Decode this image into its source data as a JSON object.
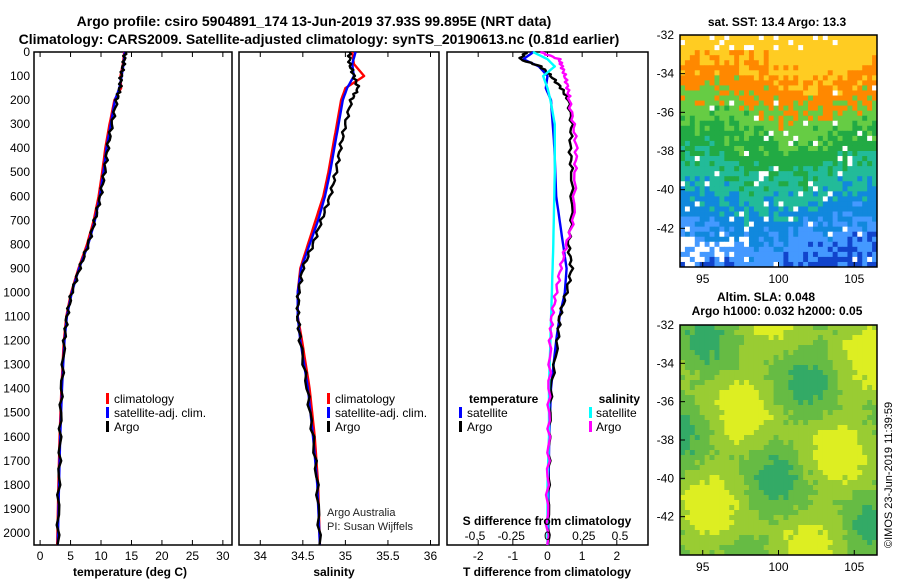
{
  "title": {
    "line1": "Argo profile: csiro 5904891_174 13-Jun-2019 37.93S 99.895E (NRT data)",
    "line2": "Climatology: CARS2009. Satellite-adjusted climatology: synTS_20190613.nc (0.81d earlier)"
  },
  "colors": {
    "climatology": "#ff0000",
    "satellite": "#0000ff",
    "argo": "#000000",
    "salinity_satellite": "#00ffff",
    "salinity_argo": "#ff00ff"
  },
  "depth_ticks": [
    "0",
    "100",
    "200",
    "300",
    "400",
    "500",
    "600",
    "700",
    "800",
    "900",
    "1000",
    "1100",
    "1200",
    "1300",
    "1400",
    "1500",
    "1600",
    "1700",
    "1800",
    "1900",
    "2000"
  ],
  "legend_labels": {
    "climatology": "climatology",
    "satellite": "satellite-adj. clim.",
    "argo": "Argo"
  },
  "credits": {
    "org": "Argo Australia",
    "pi": "PI: Susan Wijffels"
  },
  "chart_data": [
    {
      "type": "line",
      "name": "temperature",
      "xlabel": "temperature (deg C)",
      "ylabel": "depth",
      "xlim": [
        -1,
        31.5
      ],
      "ylim": [
        2050,
        0
      ],
      "xticks": [
        "0",
        "5",
        "10",
        "15",
        "20",
        "25",
        "30"
      ],
      "xtick_values": [
        0,
        5,
        10,
        15,
        20,
        25,
        30
      ],
      "series": [
        {
          "name": "climatology",
          "depth": [
            0,
            50,
            100,
            150,
            200,
            300,
            400,
            500,
            600,
            700,
            800,
            900,
            1000,
            1100,
            1200,
            1400,
            1600,
            1800,
            2050
          ],
          "values": [
            13.8,
            13.6,
            13.2,
            13.3,
            12.2,
            11.4,
            10.7,
            10.2,
            9.6,
            8.8,
            7.7,
            6.3,
            5.1,
            4.3,
            3.9,
            3.5,
            3.2,
            3.0,
            2.8
          ]
        },
        {
          "name": "satellite-adj. clim.",
          "depth": [
            0,
            50,
            100,
            150,
            200,
            300,
            400,
            500,
            600,
            700,
            800,
            900,
            1000,
            1100,
            1200,
            1400,
            1600,
            1800,
            2050
          ],
          "values": [
            13.9,
            13.7,
            13.4,
            13.0,
            12.3,
            11.6,
            10.9,
            10.4,
            9.8,
            9.0,
            7.9,
            6.4,
            5.2,
            4.4,
            4.0,
            3.6,
            3.3,
            3.1,
            2.9
          ]
        },
        {
          "name": "Argo",
          "depth": [
            0,
            50,
            100,
            150,
            200,
            300,
            400,
            500,
            600,
            700,
            800,
            900,
            1000,
            1100,
            1200,
            1400,
            1600,
            1800,
            2050
          ],
          "values": [
            14.0,
            13.7,
            13.3,
            13.1,
            12.6,
            11.8,
            11.1,
            10.6,
            9.9,
            9.0,
            7.9,
            6.5,
            5.2,
            4.4,
            4.0,
            3.5,
            3.3,
            3.1,
            2.9
          ]
        }
      ]
    },
    {
      "type": "line",
      "name": "salinity",
      "xlabel": "salinity",
      "ylabel": "depth",
      "xlim": [
        33.75,
        36.1
      ],
      "ylim": [
        2050,
        0
      ],
      "xticks": [
        "34",
        "34.5",
        "35",
        "35.5",
        "36"
      ],
      "xtick_values": [
        34,
        34.5,
        35,
        35.5,
        36
      ],
      "series": [
        {
          "name": "climatology",
          "depth": [
            0,
            50,
            100,
            150,
            200,
            300,
            400,
            500,
            600,
            700,
            800,
            900,
            1000,
            1100,
            1200,
            1400,
            1600,
            1800,
            2050
          ],
          "values": [
            35.08,
            35.1,
            35.22,
            35.0,
            34.95,
            34.9,
            34.85,
            34.8,
            34.74,
            34.65,
            34.56,
            34.47,
            34.44,
            34.44,
            34.49,
            34.58,
            34.64,
            34.68,
            34.7
          ]
        },
        {
          "name": "satellite-adj. clim.",
          "depth": [
            0,
            50,
            100,
            150,
            200,
            300,
            400,
            500,
            600,
            700,
            800,
            900,
            1000,
            1100,
            1200,
            1400,
            1600,
            1800,
            2050
          ],
          "values": [
            35.12,
            35.08,
            35.1,
            35.02,
            34.97,
            34.92,
            34.87,
            34.82,
            34.76,
            34.68,
            34.58,
            34.48,
            34.44,
            34.44,
            34.47,
            34.56,
            34.62,
            34.67,
            34.7
          ]
        },
        {
          "name": "Argo",
          "depth": [
            0,
            50,
            100,
            150,
            200,
            300,
            400,
            500,
            600,
            700,
            800,
            900,
            1000,
            1100,
            1200,
            1400,
            1600,
            1800,
            2050
          ],
          "values": [
            35.05,
            35.05,
            35.1,
            35.15,
            35.07,
            35.0,
            34.94,
            34.89,
            34.82,
            34.72,
            34.62,
            34.5,
            34.45,
            34.44,
            34.47,
            34.55,
            34.62,
            34.67,
            34.7
          ]
        }
      ]
    },
    {
      "type": "line",
      "name": "difference",
      "xlabel": "T difference from climatology",
      "ylabel": "depth",
      "xlim": [
        -2.9,
        2.9
      ],
      "ylim": [
        2050,
        0
      ],
      "xticks": [
        "-2",
        "-1",
        "0",
        "1",
        "2"
      ],
      "xtick_values": [
        -2,
        -1,
        0,
        1,
        2
      ],
      "sxlabel": "S difference from climatology",
      "sxticks": [
        "-0.5",
        "-0.25",
        "0",
        "0.25",
        "0.5"
      ],
      "sxtick_values": [
        -0.5,
        -0.25,
        0,
        0.25,
        0.5
      ],
      "series": [
        {
          "name": "temperature satellite",
          "depth": [
            0,
            30,
            60,
            100,
            150,
            200,
            300,
            400,
            600,
            800,
            900,
            1000,
            1100,
            1200,
            1400,
            1600,
            1800,
            2050
          ],
          "values": [
            -0.4,
            -0.7,
            -0.25,
            0.0,
            -0.05,
            0.1,
            0.15,
            0.2,
            0.25,
            0.45,
            0.55,
            0.5,
            0.35,
            0.25,
            0.1,
            0.05,
            0.03,
            0.02
          ]
        },
        {
          "name": "temperature Argo",
          "depth": [
            0,
            30,
            60,
            100,
            150,
            200,
            300,
            400,
            500,
            700,
            800,
            900,
            1000,
            1100,
            1200,
            1400,
            1600,
            1800,
            2050
          ],
          "values": [
            -0.6,
            -0.8,
            -0.2,
            0.1,
            0.4,
            0.6,
            0.7,
            0.65,
            0.7,
            0.7,
            0.6,
            0.7,
            0.55,
            0.35,
            0.3,
            0.1,
            0.05,
            0.03,
            0.02
          ]
        },
        {
          "name": "salinity satellite",
          "depth": [
            0,
            30,
            60,
            100,
            150,
            200,
            300,
            500,
            800,
            1000,
            1200,
            1400,
            1600,
            1800,
            2050
          ],
          "values": [
            -0.1,
            0.0,
            0.05,
            -0.03,
            0.0,
            0.02,
            0.05,
            0.05,
            0.04,
            0.03,
            0.02,
            0.01,
            0.01,
            0.0,
            0.0
          ]
        },
        {
          "name": "salinity Argo",
          "depth": [
            0,
            30,
            60,
            100,
            150,
            200,
            300,
            400,
            500,
            700,
            800,
            900,
            1000,
            1100,
            1200,
            1400,
            1600,
            1800,
            2050
          ],
          "values": [
            -0.05,
            0.08,
            0.1,
            0.12,
            0.14,
            0.15,
            0.18,
            0.2,
            0.19,
            0.18,
            0.13,
            0.09,
            0.06,
            0.03,
            0.02,
            0.01,
            0.01,
            0.0,
            0.0
          ]
        }
      ],
      "legend": {
        "temperature_title": "temperature",
        "salinity_title": "salinity",
        "satellite": "satellite",
        "argo": "Argo"
      }
    },
    {
      "type": "heatmap",
      "name": "sst_map",
      "title": "sat. SST: 13.4 Argo: 13.3",
      "xlim": [
        93.5,
        106.5
      ],
      "ylim": [
        -44,
        -32
      ],
      "xticks": [
        "95",
        "100",
        "105"
      ],
      "xtick_values": [
        95,
        100,
        105
      ],
      "yticks": [
        "-32",
        "-34",
        "-36",
        "-38",
        "-40",
        "-42"
      ],
      "ytick_values": [
        -32,
        -34,
        -36,
        -38,
        -40,
        -42
      ],
      "colormap": [
        "#ffcc22",
        "#ff8800",
        "#66cc44",
        "#22aa44",
        "#22bb99",
        "#1188dd",
        "#4499ff",
        "#1144cc"
      ],
      "gradient": "warm north to cool south"
    },
    {
      "type": "heatmap",
      "name": "sla_map",
      "title": "Altim. SLA: 0.048",
      "subtitle": "Argo h1000: 0.032 h2000: 0.05",
      "xlim": [
        93.5,
        106.5
      ],
      "ylim": [
        -44,
        -32
      ],
      "xticks": [
        "95",
        "100",
        "105"
      ],
      "xtick_values": [
        95,
        100,
        105
      ],
      "yticks": [
        "-32",
        "-34",
        "-36",
        "-38",
        "-40",
        "-42"
      ],
      "ytick_values": [
        -32,
        -34,
        -36,
        -38,
        -40,
        -42
      ],
      "colormap": [
        "#ddee22",
        "#99cc33",
        "#66bb44",
        "#33aa66",
        "#229977"
      ],
      "gradient": "mottled green/yellow"
    }
  ],
  "watermark": "©IMOS 23-Jun-2019 11:39:59"
}
